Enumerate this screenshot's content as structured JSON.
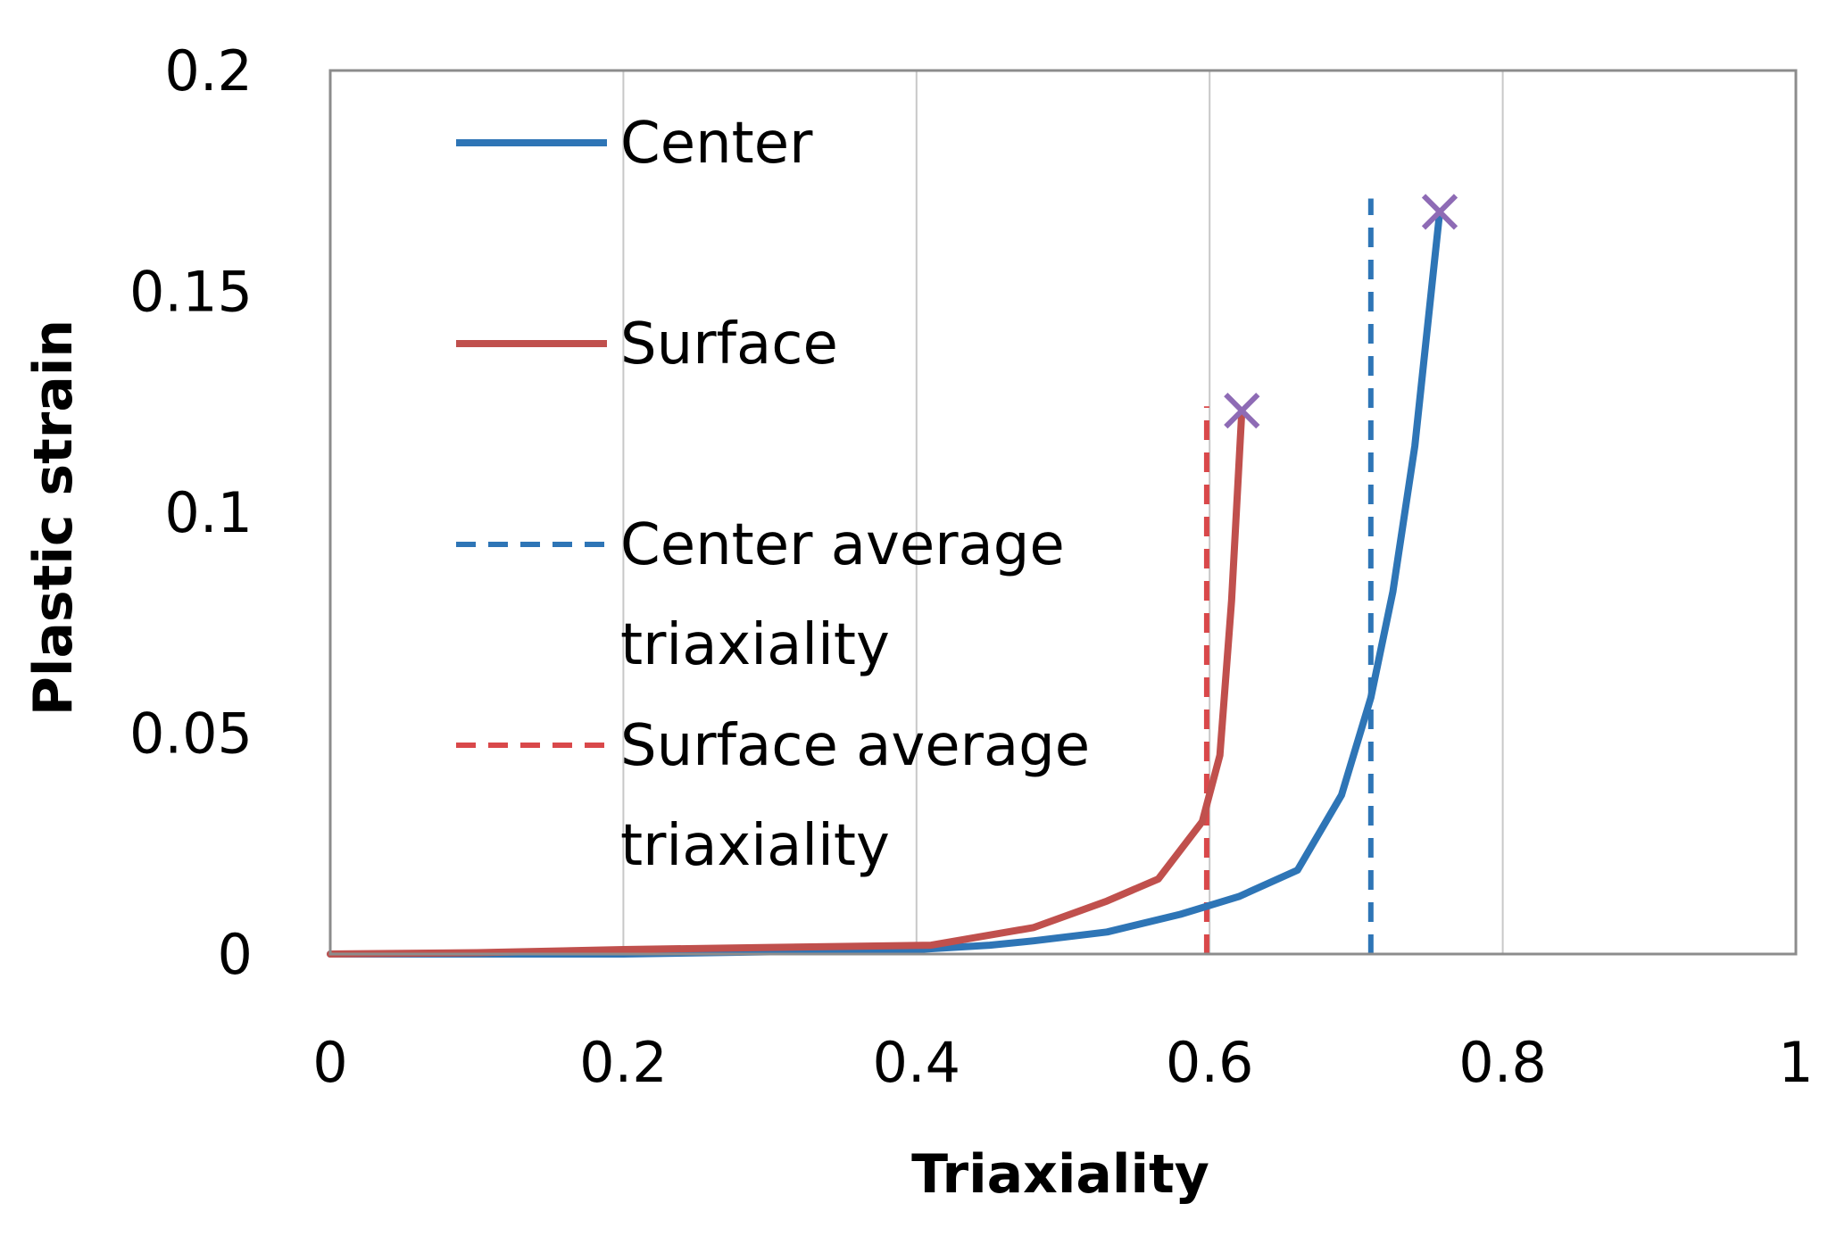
{
  "chart_data": {
    "type": "line",
    "xlabel": "Triaxiality",
    "ylabel": "Plastic strain",
    "xlim": [
      0,
      1
    ],
    "ylim": [
      0,
      0.2
    ],
    "xticks": [
      "0",
      "0.2",
      "0.4",
      "0.6",
      "0.8",
      "1"
    ],
    "yticks": [
      "0",
      "0.05",
      "0.1",
      "0.15",
      "0.2"
    ],
    "grid": "vertical",
    "legend_position": "top-left",
    "series": [
      {
        "name": "Center",
        "style": "solid",
        "color": "#2E75B6",
        "points": [
          [
            0,
            0
          ],
          [
            0.1,
            0
          ],
          [
            0.2,
            0
          ],
          [
            0.3,
            0.0005
          ],
          [
            0.4,
            0.001
          ],
          [
            0.45,
            0.002
          ],
          [
            0.48,
            0.003
          ],
          [
            0.53,
            0.005
          ],
          [
            0.58,
            0.009
          ],
          [
            0.62,
            0.013
          ],
          [
            0.66,
            0.019
          ],
          [
            0.69,
            0.036
          ],
          [
            0.71,
            0.058
          ],
          [
            0.725,
            0.082
          ],
          [
            0.74,
            0.115
          ],
          [
            0.757,
            0.168
          ]
        ],
        "end_marker": {
          "x": 0.757,
          "y": 0.168
        }
      },
      {
        "name": "Surface",
        "style": "solid",
        "color": "#C0504D",
        "points": [
          [
            0,
            0
          ],
          [
            0.1,
            0.0003
          ],
          [
            0.2,
            0.001
          ],
          [
            0.3,
            0.0015
          ],
          [
            0.41,
            0.002
          ],
          [
            0.48,
            0.006
          ],
          [
            0.53,
            0.012
          ],
          [
            0.565,
            0.017
          ],
          [
            0.595,
            0.03
          ],
          [
            0.607,
            0.045
          ],
          [
            0.615,
            0.08
          ],
          [
            0.622,
            0.123
          ]
        ],
        "end_marker": {
          "x": 0.622,
          "y": 0.123
        }
      },
      {
        "name": "Center average triaxiality",
        "legend_lines": [
          "Center average",
          "triaxiality"
        ],
        "style": "dashed",
        "color": "#2E75B6",
        "x": 0.71,
        "y_range": [
          0,
          0.171
        ]
      },
      {
        "name": "Surface average triaxiality",
        "legend_lines": [
          "Surface average",
          "triaxiality"
        ],
        "style": "dashed",
        "color": "#D9484A",
        "x": 0.598,
        "y_range": [
          0,
          0.124
        ]
      }
    ],
    "marker_color": "#8E6BB5"
  }
}
